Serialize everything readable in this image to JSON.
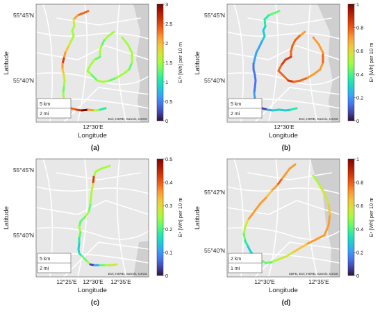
{
  "colors": {
    "map_bg": "#e8e8e8",
    "road": "#ffffff",
    "water": "#cfcfcf",
    "text": "#222222"
  },
  "colormap": [
    "#30123b",
    "#4145ab",
    "#4675ed",
    "#39a2fc",
    "#1bcfd4",
    "#24eca6",
    "#61fc6c",
    "#a4fc3b",
    "#d1e834",
    "#f3c63a",
    "#fe9b2d",
    "#f36315",
    "#d93806",
    "#b11901",
    "#7a0402"
  ],
  "panels": [
    {
      "label": "(a)",
      "xlabel": "Longitude",
      "ylabel": "Latitude",
      "yticks": [
        "55°45′N",
        "55°40′N"
      ],
      "xticks": [
        "12°30′E"
      ],
      "scale": [
        "5 km",
        "2 mi"
      ],
      "attribution": "Esri, HERE, Garmin, USGS",
      "colorbar": {
        "label": "Eᵐ [Wh] per 10 m",
        "min": 0,
        "max": 3,
        "ticks": [
          "3",
          "2.5",
          "2",
          "1.5",
          "1",
          "0.5",
          "0"
        ]
      }
    },
    {
      "label": "(b)",
      "xlabel": "Longitude",
      "ylabel": "Latitude",
      "yticks": [
        "55°45′N",
        "55°40′N"
      ],
      "xticks": [
        "12°30′E"
      ],
      "scale": [
        "5 km",
        "2 mi"
      ],
      "attribution": "Esri, HERE, Garmin, USGS",
      "colorbar": {
        "label": "Eⁿ [Wh] per 10 m",
        "min": 0,
        "max": 1,
        "ticks": [
          "1",
          "0.8",
          "0.6",
          "0.4",
          "0.2",
          "0"
        ]
      }
    },
    {
      "label": "(c)",
      "xlabel": "Longitude",
      "ylabel": "Latitude",
      "yticks": [
        "55°45′N",
        "55°40′N"
      ],
      "xticks": [
        "12°25′E",
        "12°30′E",
        "12°35′E"
      ],
      "scale": [
        "5 km",
        "2 mi"
      ],
      "attribution": "Esri, HERE, Garmin, USGS",
      "colorbar": {
        "label": "Eⁿ [Wh] per 10 m",
        "min": 0,
        "max": 0.5,
        "ticks": [
          "0.5",
          "0.4",
          "0.3",
          "0.2",
          "0.1",
          "0"
        ]
      }
    },
    {
      "label": "(d)",
      "xlabel": "Longitude",
      "ylabel": "Latitude",
      "yticks": [
        "55°42′N",
        "55°40′N"
      ],
      "xticks": [
        "12°30′E",
        "12°35′E"
      ],
      "scale": [
        "2 km",
        "1 mi"
      ],
      "attribution": "SDFE, Esri, HERE, Garmin, USGS",
      "colorbar": {
        "label": "Eⁿ [Wh] per 10 m",
        "min": 0,
        "max": 1,
        "ticks": [
          "1",
          "0.8",
          "0.6",
          "0.4",
          "0.2",
          "0"
        ]
      }
    }
  ],
  "chart_data": [
    {
      "type": "scatter",
      "title": "",
      "xlabel": "Longitude",
      "ylabel": "Latitude",
      "colorbar_range": [
        0,
        3
      ],
      "routes": [
        {
          "values": [
            2.3,
            2.1,
            1.8,
            1.5,
            1.4,
            1.6,
            1.8,
            2.0,
            2.2,
            2.6,
            2.2,
            1.9,
            1.7,
            1.4,
            1.3,
            1.5,
            1.7,
            1.9,
            2.1,
            2.3,
            2.6,
            2.9,
            2.2,
            1.6,
            1.1,
            0.9
          ],
          "path": [
            [
              75,
              10
            ],
            [
              60,
              16
            ],
            [
              54,
              22
            ],
            [
              55,
              32
            ],
            [
              52,
              38
            ],
            [
              54,
              46
            ],
            [
              50,
              54
            ],
            [
              46,
              62
            ],
            [
              42,
              70
            ],
            [
              40,
              78
            ],
            [
              38,
              86
            ],
            [
              38,
              94
            ],
            [
              40,
              102
            ],
            [
              41,
              110
            ],
            [
              40,
              120
            ],
            [
              39,
              128
            ],
            [
              40,
              136
            ],
            [
              43,
              142
            ],
            [
              46,
              146
            ],
            [
              50,
              150
            ],
            [
              58,
              152
            ],
            [
              66,
              153
            ],
            [
              75,
              152
            ],
            [
              84,
              153
            ],
            [
              92,
              152
            ],
            [
              100,
              150
            ]
          ]
        },
        {
          "values": [
            1.6,
            1.4,
            1.3,
            1.5,
            1.4,
            1.3,
            1.5,
            1.6,
            1.4,
            1.3,
            1.4,
            1.5,
            1.3,
            1.5,
            1.4,
            1.3,
            1.5,
            1.6,
            1.4,
            1.3
          ],
          "path": [
            [
              112,
              40
            ],
            [
              104,
              46
            ],
            [
              98,
              52
            ],
            [
              94,
              60
            ],
            [
              92,
              68
            ],
            [
              92,
              76
            ],
            [
              84,
              80
            ],
            [
              78,
              88
            ],
            [
              74,
              96
            ],
            [
              80,
              102
            ],
            [
              88,
              110
            ],
            [
              96,
              112
            ],
            [
              106,
              110
            ],
            [
              116,
              106
            ],
            [
              126,
              100
            ],
            [
              134,
              94
            ],
            [
              138,
              84
            ],
            [
              138,
              70
            ],
            [
              132,
              58
            ],
            [
              124,
              48
            ]
          ]
        }
      ]
    },
    {
      "type": "scatter",
      "title": "",
      "xlabel": "Longitude",
      "ylabel": "Latitude",
      "colorbar_range": [
        0,
        1
      ],
      "routes": [
        {
          "values": [
            0.42,
            0.38,
            0.34,
            0.3,
            0.28,
            0.26,
            0.24,
            0.22,
            0.2,
            0.18,
            0.16,
            0.15,
            0.14,
            0.15,
            0.16,
            0.18,
            0.14,
            0.12,
            0.05,
            0.1,
            0.22,
            0.28,
            0.3,
            0.32,
            0.34,
            0.36
          ],
          "path": [
            [
              75,
              10
            ],
            [
              60,
              16
            ],
            [
              54,
              22
            ],
            [
              55,
              32
            ],
            [
              52,
              38
            ],
            [
              54,
              46
            ],
            [
              50,
              54
            ],
            [
              46,
              62
            ],
            [
              42,
              70
            ],
            [
              40,
              78
            ],
            [
              38,
              86
            ],
            [
              38,
              94
            ],
            [
              40,
              102
            ],
            [
              41,
              110
            ],
            [
              40,
              120
            ],
            [
              39,
              128
            ],
            [
              40,
              136
            ],
            [
              43,
              142
            ],
            [
              46,
              146
            ],
            [
              50,
              150
            ],
            [
              58,
              152
            ],
            [
              66,
              153
            ],
            [
              75,
              152
            ],
            [
              84,
              153
            ],
            [
              92,
              152
            ],
            [
              100,
              150
            ]
          ]
        },
        {
          "values": [
            0.7,
            0.75,
            0.8,
            0.82,
            0.78,
            0.85,
            0.88,
            0.8,
            0.75,
            0.82,
            0.86,
            0.8,
            0.76,
            0.72,
            0.7,
            0.74,
            0.78,
            0.72,
            0.68,
            0.72
          ],
          "path": [
            [
              112,
              40
            ],
            [
              104,
              46
            ],
            [
              98,
              52
            ],
            [
              94,
              60
            ],
            [
              92,
              68
            ],
            [
              92,
              76
            ],
            [
              84,
              80
            ],
            [
              78,
              88
            ],
            [
              74,
              96
            ],
            [
              80,
              102
            ],
            [
              88,
              110
            ],
            [
              96,
              112
            ],
            [
              106,
              110
            ],
            [
              116,
              106
            ],
            [
              126,
              100
            ],
            [
              134,
              94
            ],
            [
              138,
              84
            ],
            [
              138,
              70
            ],
            [
              132,
              58
            ],
            [
              124,
              48
            ]
          ]
        }
      ]
    },
    {
      "type": "scatter",
      "title": "",
      "xlabel": "Longitude",
      "ylabel": "Latitude",
      "colorbar_range": [
        0,
        0.5
      ],
      "routes": [
        {
          "values": [
            0.25,
            0.24,
            0.26,
            0.42,
            0.3,
            0.26,
            0.24,
            0.22,
            0.24,
            0.2,
            0.22,
            0.24,
            0.2,
            0.18,
            0.16,
            0.14,
            0.18,
            0.2,
            0.22,
            0.24,
            0.05,
            0.1,
            0.2,
            0.26,
            0.3,
            0.45
          ],
          "path": [
            [
              106,
              10
            ],
            [
              94,
              14
            ],
            [
              86,
              18
            ],
            [
              83,
              26
            ],
            [
              82,
              36
            ],
            [
              80,
              46
            ],
            [
              79,
              56
            ],
            [
              78,
              66
            ],
            [
              76,
              76
            ],
            [
              70,
              84
            ],
            [
              64,
              90
            ],
            [
              62,
              98
            ],
            [
              64,
              106
            ],
            [
              62,
              114
            ],
            [
              62,
              122
            ],
            [
              61,
              130
            ],
            [
              62,
              136
            ],
            [
              66,
              140
            ],
            [
              70,
              144
            ],
            [
              74,
              148
            ],
            [
              78,
              152
            ],
            [
              84,
              153
            ],
            [
              92,
              153
            ],
            [
              100,
              153
            ],
            [
              108,
              153
            ],
            [
              116,
              152
            ]
          ]
        }
      ]
    },
    {
      "type": "scatter",
      "title": "",
      "xlabel": "Longitude",
      "ylabel": "Latitude",
      "colorbar_range": [
        0,
        1
      ],
      "routes": [
        {
          "values": [
            0.7,
            0.68,
            0.72,
            0.75,
            0.7,
            0.66,
            0.68,
            0.72,
            0.74,
            0.7,
            0.6,
            0.5,
            0.42,
            0.36,
            0.32,
            0.3,
            0.34,
            0.4,
            0.46,
            0.5,
            0.55,
            0.6,
            0.62,
            0.66,
            0.7,
            0.72,
            0.74,
            0.7,
            0.66,
            0.6,
            0.55,
            0.5,
            0.45
          ],
          "path": [
            [
              98,
              8
            ],
            [
              90,
              14
            ],
            [
              84,
              22
            ],
            [
              78,
              30
            ],
            [
              72,
              38
            ],
            [
              64,
              46
            ],
            [
              56,
              56
            ],
            [
              48,
              64
            ],
            [
              42,
              72
            ],
            [
              36,
              80
            ],
            [
              30,
              88
            ],
            [
              26,
              98
            ],
            [
              24,
              108
            ],
            [
              26,
              118
            ],
            [
              30,
              126
            ],
            [
              34,
              134
            ],
            [
              40,
              140
            ],
            [
              48,
              146
            ],
            [
              56,
              150
            ],
            [
              66,
              148
            ],
            [
              76,
              144
            ],
            [
              86,
              140
            ],
            [
              96,
              134
            ],
            [
              106,
              128
            ],
            [
              116,
              122
            ],
            [
              128,
              116
            ],
            [
              140,
              110
            ],
            [
              146,
              96
            ],
            [
              148,
              80
            ],
            [
              146,
              64
            ],
            [
              140,
              50
            ],
            [
              132,
              36
            ],
            [
              124,
              24
            ]
          ]
        }
      ]
    }
  ]
}
